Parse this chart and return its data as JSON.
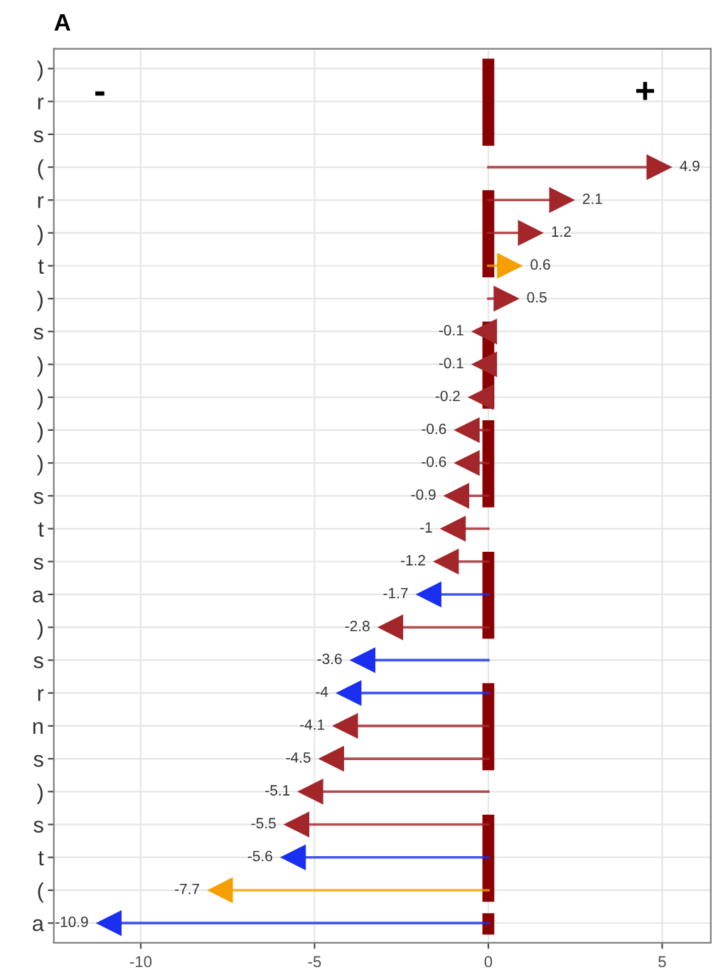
{
  "chart_data": {
    "type": "lollipop",
    "orientation": "horizontal",
    "title": "A",
    "annotations": [
      "-",
      "+"
    ],
    "categories": [
      ")",
      "r",
      "s",
      "(",
      "r",
      ")",
      "t",
      ")",
      "s",
      ")",
      ")",
      ")",
      ")",
      "s",
      "t",
      "s",
      "a",
      ")",
      "s",
      "r",
      "n",
      "s",
      ")",
      "s",
      "t",
      "(",
      "a"
    ],
    "series": [
      {
        "color": "#a3262a",
        "values": [
          null,
          null,
          null,
          4.9,
          2.1,
          1.2,
          null,
          0.5,
          -0.1,
          -0.1,
          null,
          null,
          -0.6,
          null,
          -1,
          -1.2,
          null,
          null,
          null,
          null,
          -4.1,
          -4.5,
          null,
          -5.5,
          null,
          null,
          null
        ]
      },
      {
        "color": "#a3262a",
        "values": [
          null,
          null,
          null,
          null,
          null,
          null,
          null,
          null,
          null,
          null,
          -0.2,
          -0.6,
          null,
          -0.9,
          null,
          null,
          null,
          -2.8,
          null,
          null,
          null,
          null,
          -5.1,
          null,
          null,
          null,
          null
        ]
      },
      {
        "color": "#1a2ff0",
        "values": [
          null,
          null,
          null,
          null,
          null,
          null,
          null,
          null,
          null,
          null,
          null,
          null,
          null,
          null,
          null,
          null,
          -1.7,
          null,
          -3.6,
          -4,
          null,
          null,
          null,
          null,
          null,
          null,
          -10.9
        ]
      },
      {
        "color": "#1a2ff0",
        "values": [
          null,
          null,
          null,
          null,
          null,
          null,
          null,
          null,
          null,
          null,
          null,
          null,
          null,
          null,
          null,
          null,
          null,
          null,
          null,
          null,
          null,
          null,
          null,
          null,
          -5.6,
          null,
          null
        ]
      },
      {
        "color": "#f5a000",
        "values": [
          null,
          null,
          null,
          null,
          null,
          null,
          0.6,
          null,
          null,
          null,
          null,
          null,
          null,
          null,
          null,
          null,
          null,
          null,
          null,
          null,
          null,
          null,
          null,
          null,
          null,
          -7.7,
          null
        ]
      }
    ],
    "xlim": [
      -12.5,
      6.4
    ],
    "xticks": [
      -10,
      -5,
      0,
      5
    ],
    "marker": "triangle",
    "data_labels": true,
    "grid": true
  }
}
